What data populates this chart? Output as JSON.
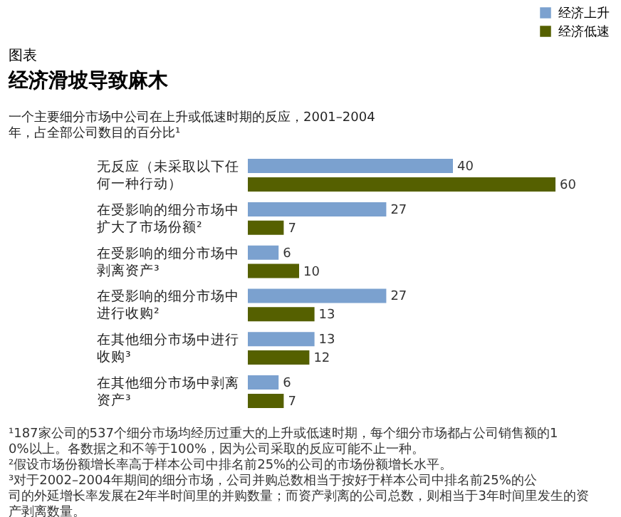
{
  "chart_data": {
    "type": "bar",
    "orientation": "horizontal",
    "title": "经济滑坡导致麻木",
    "subtitle": "一个主要细分市场中公司在上升或低速时期的反应，2001–2004年，占全部公司数目的百分比¹",
    "categories": [
      "无反应（未采取以下任何一种行动）",
      "在受影响的细分市场中扩大了市场份额²",
      "在受影响的细分市场中剥离资产³",
      "在受影响的细分市场中进行收购²",
      "在其他细分市场中进行收购³",
      "在其他细分市场中剥离资产³"
    ],
    "series": [
      {
        "name": "经济上升",
        "color": "#7ba1cf",
        "values": [
          40,
          27,
          6,
          27,
          13,
          6
        ]
      },
      {
        "name": "经济低速",
        "color": "#556000",
        "values": [
          60,
          7,
          10,
          13,
          12,
          7
        ]
      }
    ],
    "data_labels": true,
    "legend": "top right",
    "grid": false,
    "annotations": [
      "图表",
      "¹187家公司的537个细分市场均经历过重大的上升或低速时期，每个细分市场都占公司销售额的10%以上。各数据之和不等于100%，因为公司采取的反应可能不止一种。",
      "²假设市场份额增长率高于样本公司中排名前25%的公司的市场份额增长水平。",
      "³对于2002–2004年期间的细分市场，公司并购总数相当于按好于样本公司中排名前25%的公司的外延增长率发展在2年半时间里的并购数量；而资产剥离的公司总数，则相当于3年时间里发生的资产剥离数量。"
    ]
  }
}
